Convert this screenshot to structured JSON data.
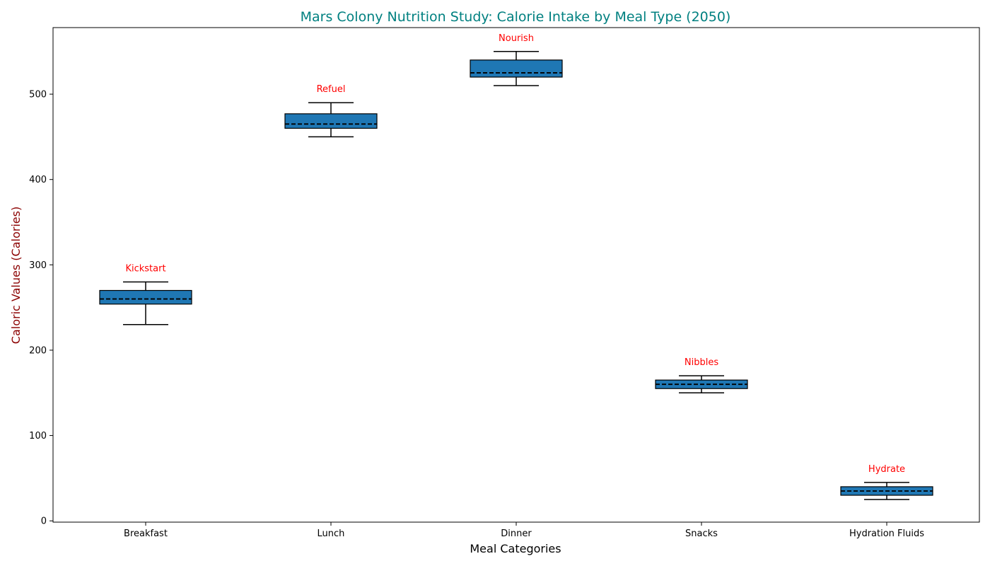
{
  "chart_data": {
    "type": "box",
    "title": "Mars Colony Nutrition Study: Calorie Intake by Meal Type (2050)",
    "xlabel": "Meal Categories",
    "ylabel": "Caloric Values (Calories)",
    "categories": [
      "Breakfast",
      "Lunch",
      "Dinner",
      "Snacks",
      "Hydration Fluids"
    ],
    "boxes": [
      {
        "category": "Breakfast",
        "whisker_low": 230,
        "q1": 254,
        "median": 260,
        "q3": 270,
        "whisker_high": 280,
        "annotation": "Kickstart"
      },
      {
        "category": "Lunch",
        "whisker_low": 450,
        "q1": 460,
        "median": 465,
        "q3": 477,
        "whisker_high": 490,
        "annotation": "Refuel"
      },
      {
        "category": "Dinner",
        "whisker_low": 510,
        "q1": 520,
        "median": 525,
        "q3": 540,
        "whisker_high": 550,
        "annotation": "Nourish"
      },
      {
        "category": "Snacks",
        "whisker_low": 150,
        "q1": 155,
        "median": 160,
        "q3": 165,
        "whisker_high": 170,
        "annotation": "Nibbles"
      },
      {
        "category": "Hydration Fluids",
        "whisker_low": 25,
        "q1": 30,
        "median": 35,
        "q3": 40,
        "whisker_high": 45,
        "annotation": "Hydrate"
      }
    ],
    "yticks": [
      0,
      100,
      200,
      300,
      400,
      500
    ],
    "ylim": [
      -1.5,
      578
    ],
    "grid": false,
    "colors": {
      "box_fill": "#1f77b4",
      "title": "#008080",
      "ylabel": "#8b0000",
      "annotation": "#ff0000",
      "median_line": "#000000"
    }
  }
}
